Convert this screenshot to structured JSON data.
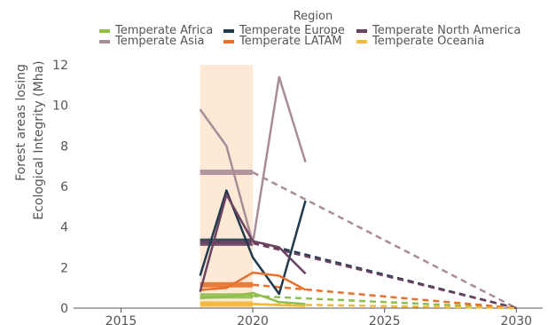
{
  "chart_data": {
    "type": "line",
    "title": "",
    "xlabel": "",
    "ylabel": [
      "Forest areas losing",
      "Ecological Integrity (Mha)"
    ],
    "xlim": [
      2013.2,
      2031.0
    ],
    "ylim": [
      0,
      12
    ],
    "xticks": [
      2015,
      2020,
      2025,
      2030
    ],
    "yticks": [
      0,
      2,
      4,
      6,
      8,
      10,
      12
    ],
    "grid": false,
    "legend": {
      "title": "Region",
      "placement": "top-center"
    },
    "highlight_band": {
      "x": [
        2018,
        2020
      ],
      "color": "#fde9d6"
    },
    "series": [
      {
        "name": "Temperate Africa",
        "color": "#8fbf4a",
        "values": [
          [
            2018,
            0.5
          ],
          [
            2019,
            0.55
          ],
          [
            2020,
            0.75
          ],
          [
            2021,
            0.3
          ],
          [
            2022,
            0.2
          ]
        ],
        "baseline": {
          "x": [
            2018,
            2020
          ],
          "y": 0.6
        },
        "projection": [
          [
            2020,
            0.6
          ],
          [
            2030,
            0.0
          ]
        ]
      },
      {
        "name": "Temperate Asia",
        "color": "#a88d99",
        "values": [
          [
            2018,
            9.8
          ],
          [
            2019,
            8.0
          ],
          [
            2020,
            3.2
          ],
          [
            2021,
            11.4
          ],
          [
            2022,
            7.2
          ]
        ],
        "baseline": {
          "x": [
            2018,
            2020
          ],
          "y": 6.7
        },
        "projection": [
          [
            2020,
            6.7
          ],
          [
            2030,
            0.0
          ]
        ]
      },
      {
        "name": "Temperate Europe",
        "color": "#1f3a4d",
        "values": [
          [
            2018,
            1.6
          ],
          [
            2019,
            5.8
          ],
          [
            2020,
            2.5
          ],
          [
            2021,
            0.7
          ],
          [
            2022,
            5.3
          ]
        ],
        "baseline": {
          "x": [
            2018,
            2020
          ],
          "y": 3.3
        },
        "projection": [
          [
            2020,
            3.3
          ],
          [
            2030,
            0.0
          ]
        ]
      },
      {
        "name": "Temperate LATAM",
        "color": "#e8702a",
        "values": [
          [
            2018,
            0.9
          ],
          [
            2019,
            1.0
          ],
          [
            2020,
            1.75
          ],
          [
            2021,
            1.6
          ],
          [
            2022,
            0.9
          ]
        ],
        "baseline": {
          "x": [
            2018,
            2020
          ],
          "y": 1.15
        },
        "projection": [
          [
            2020,
            1.15
          ],
          [
            2030,
            0.0
          ]
        ]
      },
      {
        "name": "Temperate North America",
        "color": "#6b4260",
        "values": [
          [
            2018,
            0.8
          ],
          [
            2019,
            5.6
          ],
          [
            2020,
            3.3
          ],
          [
            2021,
            3.0
          ],
          [
            2022,
            1.7
          ]
        ],
        "baseline": {
          "x": [
            2018,
            2020
          ],
          "y": 3.2
        },
        "projection": [
          [
            2020,
            3.2
          ],
          [
            2030,
            0.0
          ]
        ]
      },
      {
        "name": "Temperate Oceania",
        "color": "#f5b93a",
        "values": [
          [
            2018,
            0.2
          ],
          [
            2019,
            0.2
          ],
          [
            2020,
            0.2
          ],
          [
            2021,
            0.15
          ],
          [
            2022,
            0.1
          ]
        ],
        "baseline": {
          "x": [
            2018,
            2020
          ],
          "y": 0.2
        },
        "projection": [
          [
            2020,
            0.2
          ],
          [
            2030,
            0.0
          ]
        ]
      }
    ]
  }
}
